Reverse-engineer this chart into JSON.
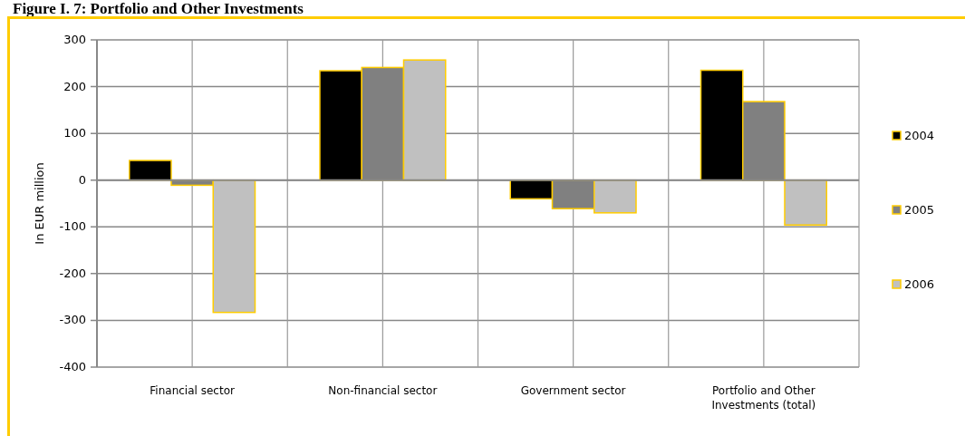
{
  "chart_data": {
    "type": "bar",
    "title": "Figure I. 7: Portfolio and Other Investments",
    "ylabel": "In EUR million",
    "categories": [
      "Financial sector",
      "Non-financial sector",
      "Government sector",
      "Portfolio and Other Investments (total)"
    ],
    "series": [
      {
        "name": "2004",
        "color": "#000000",
        "values": [
          42,
          234,
          -40,
          235
        ]
      },
      {
        "name": "2005",
        "color": "#808080",
        "values": [
          -11,
          241,
          -61,
          168
        ]
      },
      {
        "name": "2006",
        "color": "#c0c0c0",
        "values": [
          -283,
          257,
          -70,
          -96
        ]
      }
    ],
    "ylim": [
      -400,
      300
    ],
    "yticks": [
      -400,
      -300,
      -200,
      -100,
      0,
      100,
      200,
      300
    ],
    "grid": true,
    "legend": "right"
  }
}
